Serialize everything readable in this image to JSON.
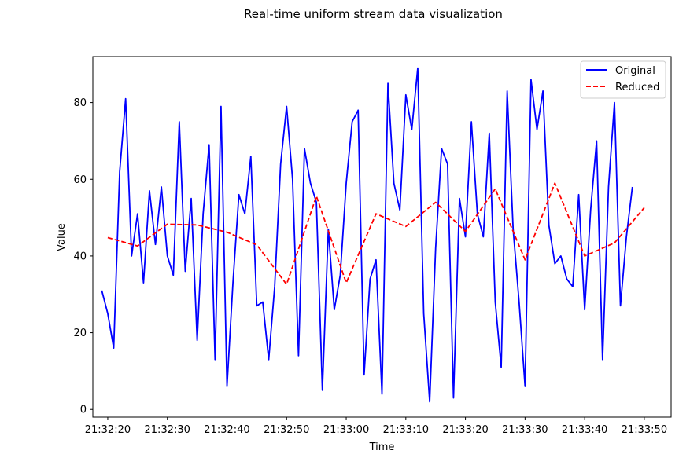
{
  "chart_data": {
    "type": "line",
    "title": "Real-time uniform stream data visualization",
    "xlabel": "Time",
    "ylabel": "Value",
    "x_ticks": [
      "21:32:20",
      "21:32:30",
      "21:32:40",
      "21:32:50",
      "21:33:00",
      "21:33:10",
      "21:33:20",
      "21:33:30",
      "21:33:40",
      "21:33:50"
    ],
    "y_ticks": [
      0,
      20,
      40,
      60,
      80
    ],
    "xlim": [
      "21:32:17.5",
      "21:33:54.5"
    ],
    "ylim": [
      -2,
      92
    ],
    "legend_position": "top-right",
    "grid": false,
    "series": [
      {
        "name": "Original",
        "color": "#0000ff",
        "style": "solid",
        "x": [
          "21:32:19",
          "21:32:20",
          "21:32:21",
          "21:32:22",
          "21:32:23",
          "21:32:24",
          "21:32:25",
          "21:32:26",
          "21:32:27",
          "21:32:28",
          "21:32:29",
          "21:32:30",
          "21:32:31",
          "21:32:32",
          "21:32:33",
          "21:32:34",
          "21:32:35",
          "21:32:36",
          "21:32:37",
          "21:32:38",
          "21:32:39",
          "21:32:40",
          "21:32:41",
          "21:32:42",
          "21:32:43",
          "21:32:44",
          "21:32:45",
          "21:32:46",
          "21:32:47",
          "21:32:48",
          "21:32:49",
          "21:32:50",
          "21:32:51",
          "21:32:52",
          "21:32:53",
          "21:32:54",
          "21:32:55",
          "21:32:56",
          "21:32:57",
          "21:32:58",
          "21:32:59",
          "21:33:00",
          "21:33:01",
          "21:33:02",
          "21:33:03",
          "21:33:04",
          "21:33:05",
          "21:33:06",
          "21:33:07",
          "21:33:08",
          "21:33:09",
          "21:33:10",
          "21:33:11",
          "21:33:12",
          "21:33:13",
          "21:33:14",
          "21:33:15",
          "21:33:16",
          "21:33:17",
          "21:33:18",
          "21:33:19",
          "21:33:20",
          "21:33:21",
          "21:33:22",
          "21:33:23",
          "21:33:24",
          "21:33:25",
          "21:33:26",
          "21:33:27",
          "21:33:28",
          "21:33:29",
          "21:33:30",
          "21:33:31",
          "21:33:32",
          "21:33:33",
          "21:33:34",
          "21:33:35",
          "21:33:36",
          "21:33:37",
          "21:33:38",
          "21:33:39",
          "21:33:40",
          "21:33:41",
          "21:33:42",
          "21:33:43",
          "21:33:44",
          "21:33:45",
          "21:33:46",
          "21:33:47",
          "21:33:48"
        ],
        "values": [
          31,
          25,
          16,
          62,
          81,
          40,
          51,
          33,
          57,
          43,
          58,
          40,
          35,
          75,
          36,
          55,
          18,
          51,
          69,
          13,
          79,
          6,
          33,
          56,
          51,
          66,
          27,
          28,
          13,
          32,
          64,
          79,
          60,
          14,
          68,
          59,
          54,
          5,
          47,
          26,
          35,
          59,
          75,
          78,
          9,
          34,
          39,
          4,
          85,
          59,
          52,
          82,
          73,
          89,
          25,
          2,
          42,
          68,
          64,
          3,
          55,
          45,
          75,
          51,
          45,
          72,
          28,
          11,
          83,
          47,
          28,
          6,
          86,
          73,
          83,
          48,
          38,
          40,
          34,
          32,
          56,
          26,
          52,
          70,
          13,
          58,
          80,
          27,
          45,
          58
        ]
      },
      {
        "name": "Reduced",
        "color": "#ff0000",
        "style": "dashed",
        "x": [
          "21:32:20",
          "21:32:25",
          "21:32:30",
          "21:32:35",
          "21:32:40",
          "21:32:45",
          "21:32:50",
          "21:32:55",
          "21:33:00",
          "21:33:05",
          "21:33:10",
          "21:33:15",
          "21:33:20",
          "21:33:25",
          "21:33:30",
          "21:33:35",
          "21:33:40",
          "21:33:45",
          "21:33:50"
        ],
        "values": [
          44.8,
          42.6,
          48.3,
          48.1,
          46.2,
          42.9,
          32.6,
          55.6,
          33.0,
          51.0,
          47.7,
          54.0,
          46.4,
          57.5,
          39.0,
          59.0,
          40.0,
          43.4,
          52.6
        ]
      }
    ]
  }
}
